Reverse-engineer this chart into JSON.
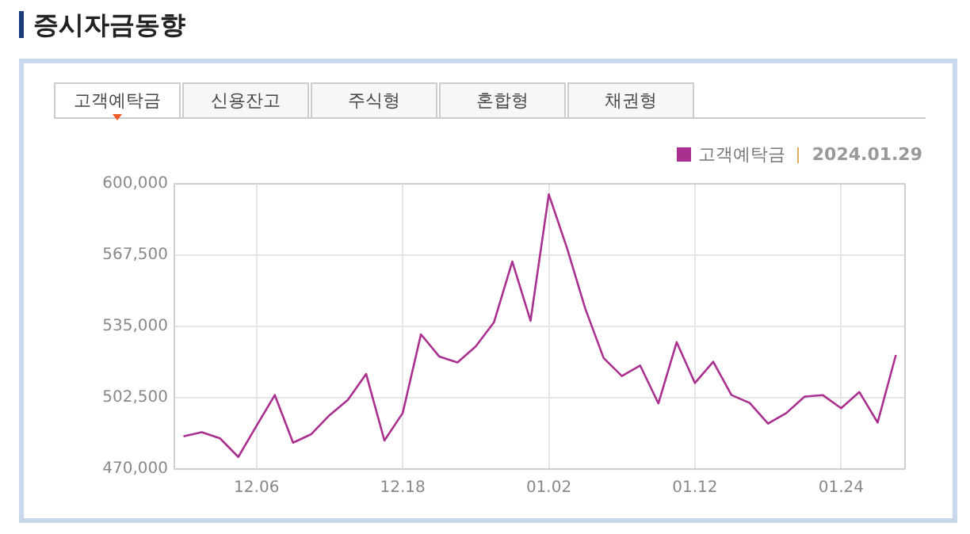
{
  "chart_data": {
    "type": "line",
    "title": "증시자금동향",
    "annotations": [
      "고객예탁금",
      "신용잔고",
      "주식형",
      "혼합형",
      "채권형",
      "2024.01.29"
    ],
    "categories": [
      null,
      null,
      null,
      null,
      "12.06",
      null,
      null,
      null,
      null,
      null,
      null,
      null,
      "12.18",
      null,
      null,
      null,
      null,
      null,
      null,
      null,
      "01.02",
      null,
      null,
      null,
      null,
      null,
      null,
      null,
      "01.12",
      null,
      null,
      null,
      null,
      null,
      null,
      null,
      "01.24",
      null,
      null,
      null
    ],
    "series": [
      {
        "name": "고객예탁금",
        "color": "#a9308e",
        "values": [
          484900,
          486800,
          484000,
          475500,
          489700,
          503700,
          482000,
          485900,
          494600,
          501500,
          513300,
          483000,
          495500,
          531400,
          521300,
          518600,
          525900,
          536900,
          564600,
          537600,
          595200,
          570600,
          543000,
          520600,
          512400,
          517200,
          499900,
          527800,
          509200,
          518900,
          503700,
          500100,
          490700,
          495500,
          503000,
          503700,
          497700,
          505100,
          491200,
          522000
        ]
      }
    ],
    "ylim": [
      470000,
      600000
    ],
    "yticks": [
      {
        "value": 470000,
        "label": "470,000"
      },
      {
        "value": 502500,
        "label": "502,500"
      },
      {
        "value": 535000,
        "label": "535,000"
      },
      {
        "value": 567500,
        "label": "567,500"
      },
      {
        "value": 600000,
        "label": "600,000"
      }
    ],
    "grid": true,
    "legend": "top right",
    "marker": "none",
    "line_style": "solid"
  }
}
